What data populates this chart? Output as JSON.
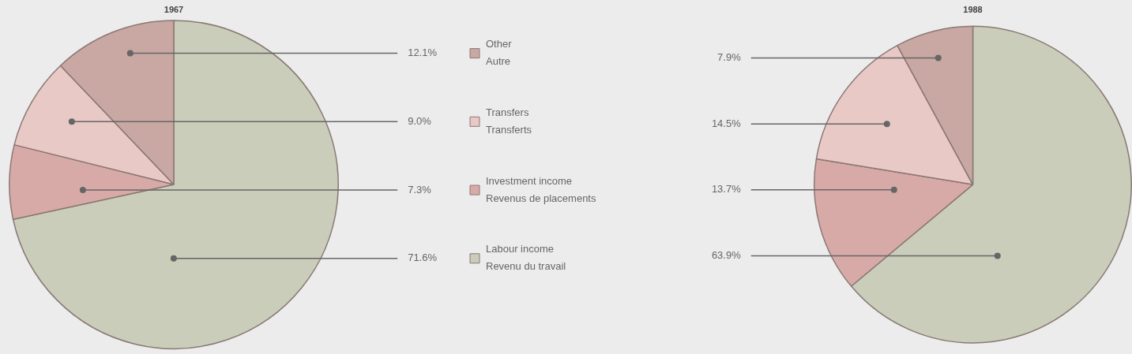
{
  "chart_data": [
    {
      "type": "pie",
      "title": "1967",
      "categories": [
        "Labour income\nRevenu du travail",
        "Investment income\nRevenus de placements",
        "Transfers\nTransferts",
        "Other\nAutre"
      ],
      "values": [
        71.6,
        7.3,
        9.0,
        12.1
      ],
      "colors": [
        "#c9cdb9",
        "#d8aaa7",
        "#e8c9c6",
        "#c9a7a2"
      ],
      "value_labels": [
        "71.6%",
        "7.3%",
        "9.0%",
        "12.1%"
      ],
      "legend": "right"
    },
    {
      "type": "pie",
      "title": "1988",
      "categories": [
        null,
        null,
        null,
        null
      ],
      "values": [
        63.9,
        13.7,
        14.5,
        7.9
      ],
      "colors": [
        "#c9cdb9",
        "#d8aaa7",
        "#e8c9c6",
        "#c9a7a2"
      ],
      "value_labels": [
        "63.9%",
        "13.7%",
        "14.5%",
        "7.9%"
      ]
    }
  ]
}
